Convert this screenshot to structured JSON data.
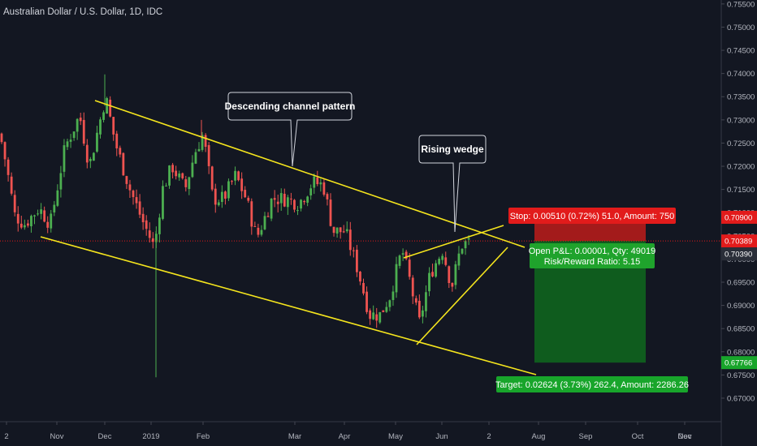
{
  "title": "Australian Dollar / U.S. Dollar, 1D, IDC",
  "colors": {
    "background": "#131722",
    "up": "#26a69a",
    "up_body": "#4caf50",
    "down": "#ef5350",
    "trendline": "#f5e51d",
    "stop_zone": "#a31b1b",
    "target_zone": "#0f5c1e",
    "stop_label": "#e21b1b",
    "target_label": "#18a52b",
    "current_price": "#e21b1b",
    "pl_box": "#1fa32c",
    "axis_text": "#b2b5be"
  },
  "chart_data": {
    "type": "candlestick",
    "symbol": "AUDUSD",
    "interval": "1D",
    "x_ticks": [
      "2",
      "Nov",
      "Dec",
      "2019",
      "Feb",
      "Mar",
      "Apr",
      "May",
      "Jun",
      "2",
      "Aug",
      "Sep",
      "Oct",
      "Nov",
      "Dec"
    ],
    "y_ticks": [
      "0.75500",
      "0.75000",
      "0.74500",
      "0.74000",
      "0.73500",
      "0.73000",
      "0.72500",
      "0.72000",
      "0.71500",
      "0.71000",
      "0.70500",
      "0.70000",
      "0.69500",
      "0.69000",
      "0.68500",
      "0.68000",
      "0.67500",
      "0.67000"
    ],
    "ylim": [
      0.6665,
      0.7555
    ],
    "price_labels": [
      {
        "text": "0.70900",
        "color": "#e21b1b",
        "value": 0.709
      },
      {
        "text": "0.70389",
        "color": "#e21b1b",
        "value": 0.70389
      },
      {
        "text": "0.70390",
        "color": "#2a2e39",
        "value": 0.7039
      },
      {
        "text": "0.67766",
        "color": "#18a52b",
        "value": 0.67766
      }
    ],
    "annotations": [
      {
        "text": "Descending channel pattern"
      },
      {
        "text": "Rising wedge"
      }
    ],
    "position": {
      "type": "short",
      "entry": 0.70389,
      "stop": 0.709,
      "target": 0.67766,
      "stop_label": "Stop: 0.00510 (0.72%) 51.0, Amount: 750",
      "target_label": "Target: 0.02624 (3.73%) 262.4, Amount: 2286.26",
      "pl_line1": "Open P&L: 0.00001, Qty: 49019",
      "pl_line2": "Risk/Reward Ratio: 5.15"
    }
  }
}
